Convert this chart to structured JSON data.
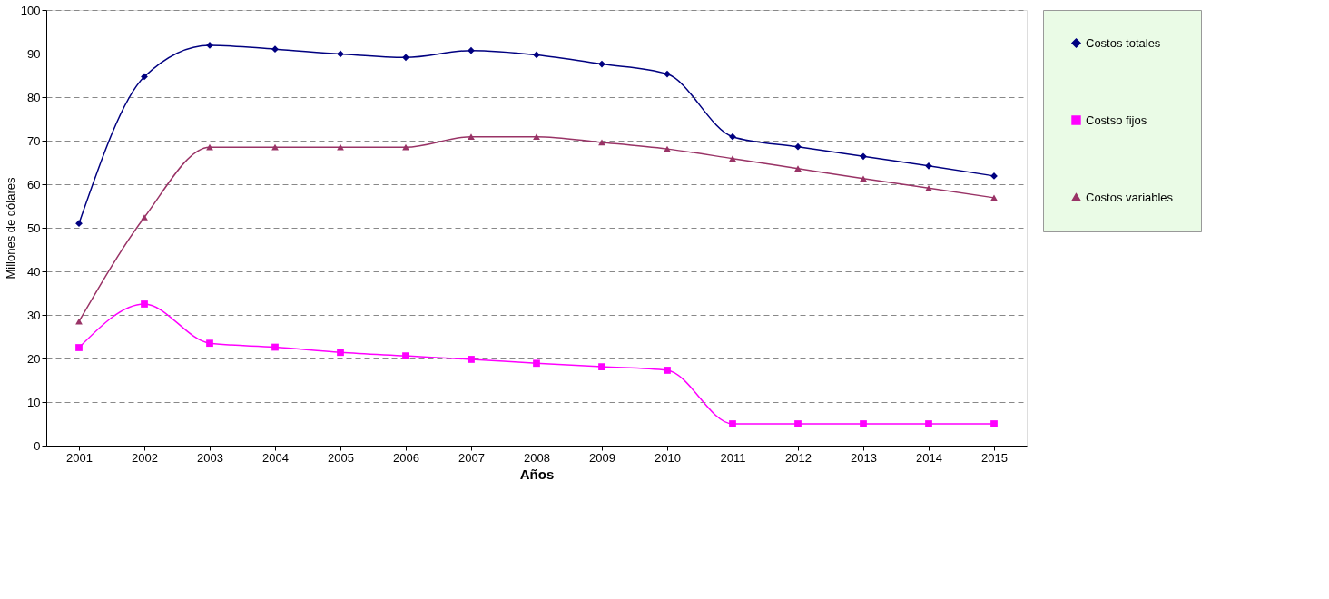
{
  "chart_data": {
    "type": "line",
    "xlabel": "Años",
    "ylabel": "Millones de dólares",
    "categories": [
      "2001",
      "2002",
      "2003",
      "2004",
      "2005",
      "2006",
      "2007",
      "2008",
      "2009",
      "2010",
      "2011",
      "2012",
      "2013",
      "2014",
      "2015"
    ],
    "series": [
      {
        "name": "Costos totales",
        "color": "#000080",
        "marker": "diamond",
        "values": [
          51.0,
          84.7,
          91.9,
          91.0,
          89.9,
          89.1,
          90.7,
          89.7,
          87.6,
          85.3,
          70.9,
          68.6,
          66.4,
          64.2,
          61.9
        ]
      },
      {
        "name": "Costso fijos",
        "color": "#ff00ff",
        "marker": "square",
        "values": [
          22.5,
          32.5,
          23.5,
          22.6,
          21.4,
          20.6,
          19.8,
          18.9,
          18.1,
          17.3,
          5.0,
          5.0,
          5.0,
          5.0,
          5.0
        ]
      },
      {
        "name": "Costos variables",
        "color": "#993366",
        "marker": "triangle",
        "values": [
          28.5,
          52.4,
          68.5,
          68.5,
          68.5,
          68.5,
          70.9,
          70.9,
          69.6,
          68.1,
          65.9,
          63.6,
          61.3,
          59.1,
          56.9
        ]
      }
    ],
    "ylim": [
      0,
      100
    ],
    "yticks": [
      0,
      10,
      20,
      30,
      40,
      50,
      60,
      70,
      80,
      90,
      100
    ],
    "grid": "y",
    "legend": "right",
    "line_style": "solid"
  }
}
